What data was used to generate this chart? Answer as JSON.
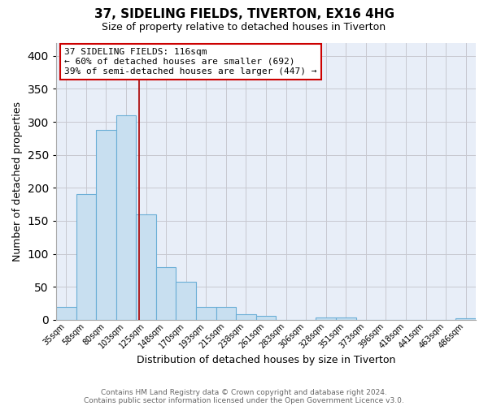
{
  "title": "37, SIDELING FIELDS, TIVERTON, EX16 4HG",
  "subtitle": "Size of property relative to detached houses in Tiverton",
  "xlabel": "Distribution of detached houses by size in Tiverton",
  "ylabel": "Number of detached properties",
  "bar_labels": [
    "35sqm",
    "58sqm",
    "80sqm",
    "103sqm",
    "125sqm",
    "148sqm",
    "170sqm",
    "193sqm",
    "215sqm",
    "238sqm",
    "261sqm",
    "283sqm",
    "306sqm",
    "328sqm",
    "351sqm",
    "373sqm",
    "396sqm",
    "418sqm",
    "441sqm",
    "463sqm",
    "486sqm"
  ],
  "bar_values": [
    20,
    190,
    288,
    310,
    160,
    80,
    58,
    20,
    20,
    8,
    6,
    0,
    0,
    4,
    3,
    0,
    0,
    0,
    0,
    0,
    2
  ],
  "bar_color": "#c8dff0",
  "bar_edge_color": "#6aaed6",
  "annotation_text": "37 SIDELING FIELDS: 116sqm\n← 60% of detached houses are smaller (692)\n39% of semi-detached houses are larger (447) →",
  "annotation_box_color": "#ffffff",
  "annotation_box_edge_color": "#cc0000",
  "vline_x": 3.65,
  "vline_color": "#aa0000",
  "ylim": [
    0,
    420
  ],
  "yticks": [
    0,
    50,
    100,
    150,
    200,
    250,
    300,
    350,
    400
  ],
  "footer1": "Contains HM Land Registry data © Crown copyright and database right 2024.",
  "footer2": "Contains public sector information licensed under the Open Government Licence v3.0.",
  "bg_color": "#ffffff",
  "plot_bg_color": "#e8eef8",
  "grid_color": "#c8c8d0",
  "title_fontsize": 11,
  "subtitle_fontsize": 9
}
